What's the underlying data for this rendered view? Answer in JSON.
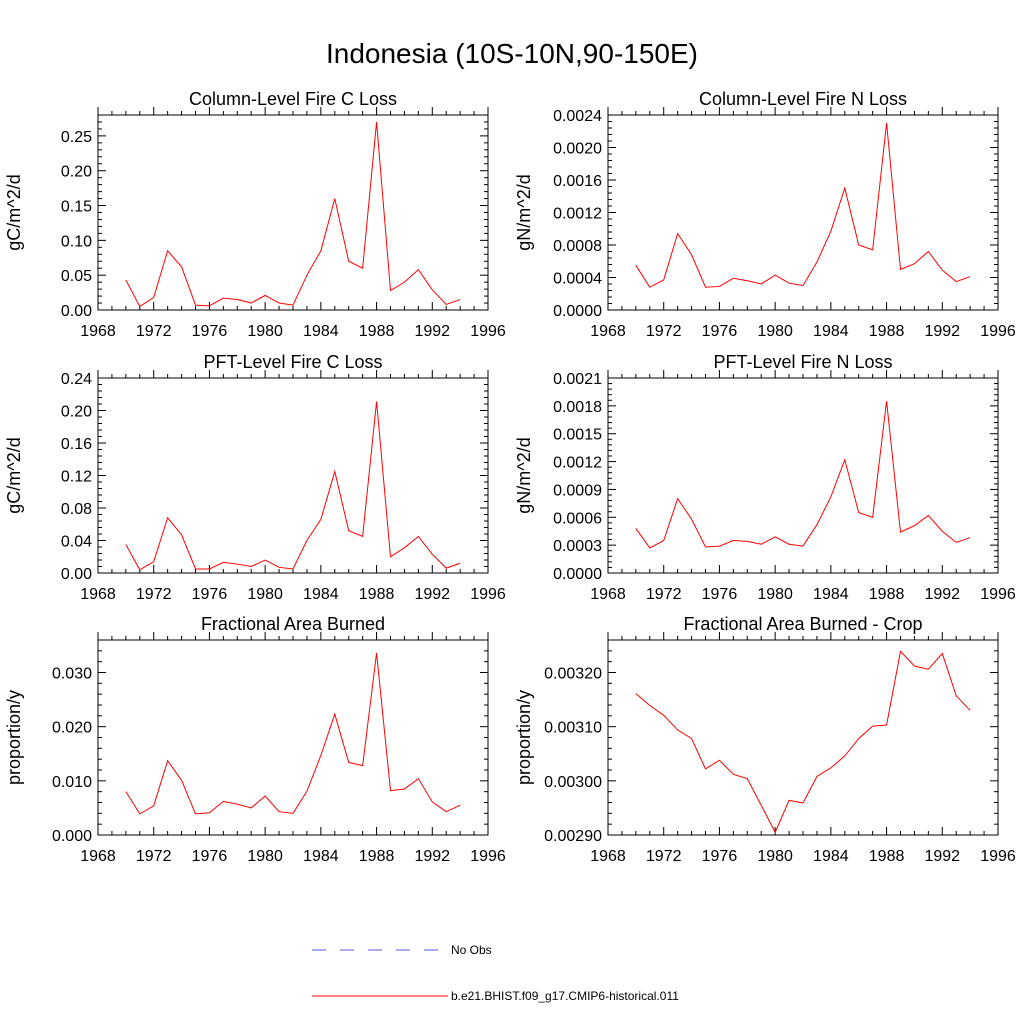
{
  "title": "Indonesia (10S-10N,90-150E)",
  "chart_data": [
    {
      "type": "line",
      "title": "Column-Level Fire C Loss",
      "ylabel": "gC/m^2/d",
      "xlim": [
        1968,
        1996
      ],
      "xticks": [
        "1968",
        "1972",
        "1976",
        "1980",
        "1984",
        "1988",
        "1992",
        "1996"
      ],
      "ylim": [
        0,
        0.28
      ],
      "yticks": [
        "0.00",
        "0.05",
        "0.10",
        "0.15",
        "0.20",
        "0.25"
      ],
      "x": [
        1970,
        1971,
        1972,
        1973,
        1974,
        1975,
        1976,
        1977,
        1978,
        1979,
        1980,
        1981,
        1982,
        1983,
        1984,
        1985,
        1986,
        1987,
        1988,
        1989,
        1990,
        1991,
        1992,
        1993,
        1994
      ],
      "series": [
        {
          "name": "b.e21.BHIST.f09_g17.CMIP6-historical.011",
          "color": "#ff0000",
          "values": [
            0.043,
            0.005,
            0.018,
            0.085,
            0.062,
            0.007,
            0.006,
            0.017,
            0.015,
            0.01,
            0.021,
            0.01,
            0.007,
            0.05,
            0.085,
            0.16,
            0.07,
            0.06,
            0.27,
            0.028,
            0.04,
            0.058,
            0.029,
            0.008,
            0.015
          ]
        }
      ]
    },
    {
      "type": "line",
      "title": "Column-Level Fire N Loss",
      "ylabel": "gN/m^2/d",
      "xlim": [
        1968,
        1996
      ],
      "xticks": [
        "1968",
        "1972",
        "1976",
        "1980",
        "1984",
        "1988",
        "1992",
        "1996"
      ],
      "ylim": [
        0,
        0.0024
      ],
      "yticks": [
        "0.0000",
        "0.0004",
        "0.0008",
        "0.0012",
        "0.0016",
        "0.0020",
        "0.0024"
      ],
      "x": [
        1970,
        1971,
        1972,
        1973,
        1974,
        1975,
        1976,
        1977,
        1978,
        1979,
        1980,
        1981,
        1982,
        1983,
        1984,
        1985,
        1986,
        1987,
        1988,
        1989,
        1990,
        1991,
        1992,
        1993,
        1994
      ],
      "series": [
        {
          "name": "b.e21.BHIST.f09_g17.CMIP6-historical.011",
          "color": "#ff0000",
          "values": [
            0.00055,
            0.00028,
            0.00037,
            0.00094,
            0.00068,
            0.00028,
            0.00029,
            0.00039,
            0.00036,
            0.00032,
            0.00043,
            0.00033,
            0.0003,
            0.00059,
            0.00097,
            0.0015,
            0.0008,
            0.00074,
            0.0023,
            0.0005,
            0.00057,
            0.00072,
            0.00049,
            0.00035,
            0.00041
          ]
        }
      ]
    },
    {
      "type": "line",
      "title": "PFT-Level Fire C Loss",
      "ylabel": "gC/m^2/d",
      "xlim": [
        1968,
        1996
      ],
      "xticks": [
        "1968",
        "1972",
        "1976",
        "1980",
        "1984",
        "1988",
        "1992",
        "1996"
      ],
      "ylim": [
        0,
        0.24
      ],
      "yticks": [
        "0.00",
        "0.04",
        "0.08",
        "0.12",
        "0.16",
        "0.20",
        "0.24"
      ],
      "x": [
        1970,
        1971,
        1972,
        1973,
        1974,
        1975,
        1976,
        1977,
        1978,
        1979,
        1980,
        1981,
        1982,
        1983,
        1984,
        1985,
        1986,
        1987,
        1988,
        1989,
        1990,
        1991,
        1992,
        1993,
        1994
      ],
      "series": [
        {
          "name": "b.e21.BHIST.f09_g17.CMIP6-historical.011",
          "color": "#ff0000",
          "values": [
            0.035,
            0.004,
            0.014,
            0.068,
            0.047,
            0.005,
            0.005,
            0.013,
            0.011,
            0.008,
            0.016,
            0.007,
            0.005,
            0.04,
            0.066,
            0.125,
            0.052,
            0.045,
            0.211,
            0.02,
            0.031,
            0.045,
            0.023,
            0.006,
            0.012
          ]
        }
      ]
    },
    {
      "type": "line",
      "title": "PFT-Level Fire N Loss",
      "ylabel": "gN/m^2/d",
      "xlim": [
        1968,
        1996
      ],
      "xticks": [
        "1968",
        "1972",
        "1976",
        "1980",
        "1984",
        "1988",
        "1992",
        "1996"
      ],
      "ylim": [
        0,
        0.0021
      ],
      "yticks": [
        "0.0000",
        "0.0003",
        "0.0006",
        "0.0009",
        "0.0012",
        "0.0015",
        "0.0018",
        "0.0021"
      ],
      "x": [
        1970,
        1971,
        1972,
        1973,
        1974,
        1975,
        1976,
        1977,
        1978,
        1979,
        1980,
        1981,
        1982,
        1983,
        1984,
        1985,
        1986,
        1987,
        1988,
        1989,
        1990,
        1991,
        1992,
        1993,
        1994
      ],
      "series": [
        {
          "name": "b.e21.BHIST.f09_g17.CMIP6-historical.011",
          "color": "#ff0000",
          "values": [
            0.00048,
            0.00027,
            0.00035,
            0.0008,
            0.00058,
            0.00028,
            0.00029,
            0.00035,
            0.00034,
            0.00031,
            0.00039,
            0.00031,
            0.00029,
            0.00052,
            0.00082,
            0.00122,
            0.00065,
            0.0006,
            0.00185,
            0.00044,
            0.00051,
            0.00062,
            0.00045,
            0.00033,
            0.00038
          ]
        }
      ]
    },
    {
      "type": "line",
      "title": "Fractional Area Burned",
      "ylabel": "proportion/y",
      "xlim": [
        1968,
        1996
      ],
      "xticks": [
        "1968",
        "1972",
        "1976",
        "1980",
        "1984",
        "1988",
        "1992",
        "1996"
      ],
      "ylim": [
        0,
        0.036
      ],
      "yticks": [
        "0.000",
        "0.010",
        "0.020",
        "0.030"
      ],
      "x": [
        1970,
        1971,
        1972,
        1973,
        1974,
        1975,
        1976,
        1977,
        1978,
        1979,
        1980,
        1981,
        1982,
        1983,
        1984,
        1985,
        1986,
        1987,
        1988,
        1989,
        1990,
        1991,
        1992,
        1993,
        1994
      ],
      "series": [
        {
          "name": "b.e21.BHIST.f09_g17.CMIP6-historical.011",
          "color": "#ff0000",
          "values": [
            0.008,
            0.0039,
            0.0054,
            0.0137,
            0.0101,
            0.0039,
            0.0041,
            0.0062,
            0.0057,
            0.005,
            0.0072,
            0.0043,
            0.004,
            0.0081,
            0.0147,
            0.0223,
            0.0134,
            0.0128,
            0.0336,
            0.0082,
            0.0085,
            0.0104,
            0.0061,
            0.0043,
            0.0055
          ]
        }
      ]
    },
    {
      "type": "line",
      "title": "Fractional Area Burned - Crop",
      "ylabel": "proportion/y",
      "xlim": [
        1968,
        1996
      ],
      "xticks": [
        "1968",
        "1972",
        "1976",
        "1980",
        "1984",
        "1988",
        "1992",
        "1996"
      ],
      "ylim": [
        0.0029,
        0.00326
      ],
      "yticks": [
        "0.00290",
        "0.00300",
        "0.00310",
        "0.00320"
      ],
      "x": [
        1970,
        1971,
        1972,
        1973,
        1974,
        1975,
        1976,
        1977,
        1978,
        1979,
        1980,
        1981,
        1982,
        1983,
        1984,
        1985,
        1986,
        1987,
        1988,
        1989,
        1990,
        1991,
        1992,
        1993,
        1994
      ],
      "series": [
        {
          "name": "b.e21.BHIST.f09_g17.CMIP6-historical.011",
          "color": "#ff0000",
          "values": [
            0.003161,
            0.003139,
            0.003121,
            0.003094,
            0.003078,
            0.003022,
            0.003038,
            0.003012,
            0.003004,
            0.002955,
            0.002905,
            0.002964,
            0.002959,
            0.003008,
            0.003024,
            0.003046,
            0.003078,
            0.003101,
            0.003103,
            0.003239,
            0.003212,
            0.003206,
            0.003235,
            0.003157,
            0.00313
          ]
        }
      ]
    }
  ],
  "legend": {
    "items": [
      {
        "label": "No Obs",
        "color": "#5a5ad8",
        "style": "dashed"
      },
      {
        "label": "b.e21.BHIST.f09_g17.CMIP6-historical.011",
        "color": "#ff0000",
        "style": "solid"
      }
    ]
  }
}
